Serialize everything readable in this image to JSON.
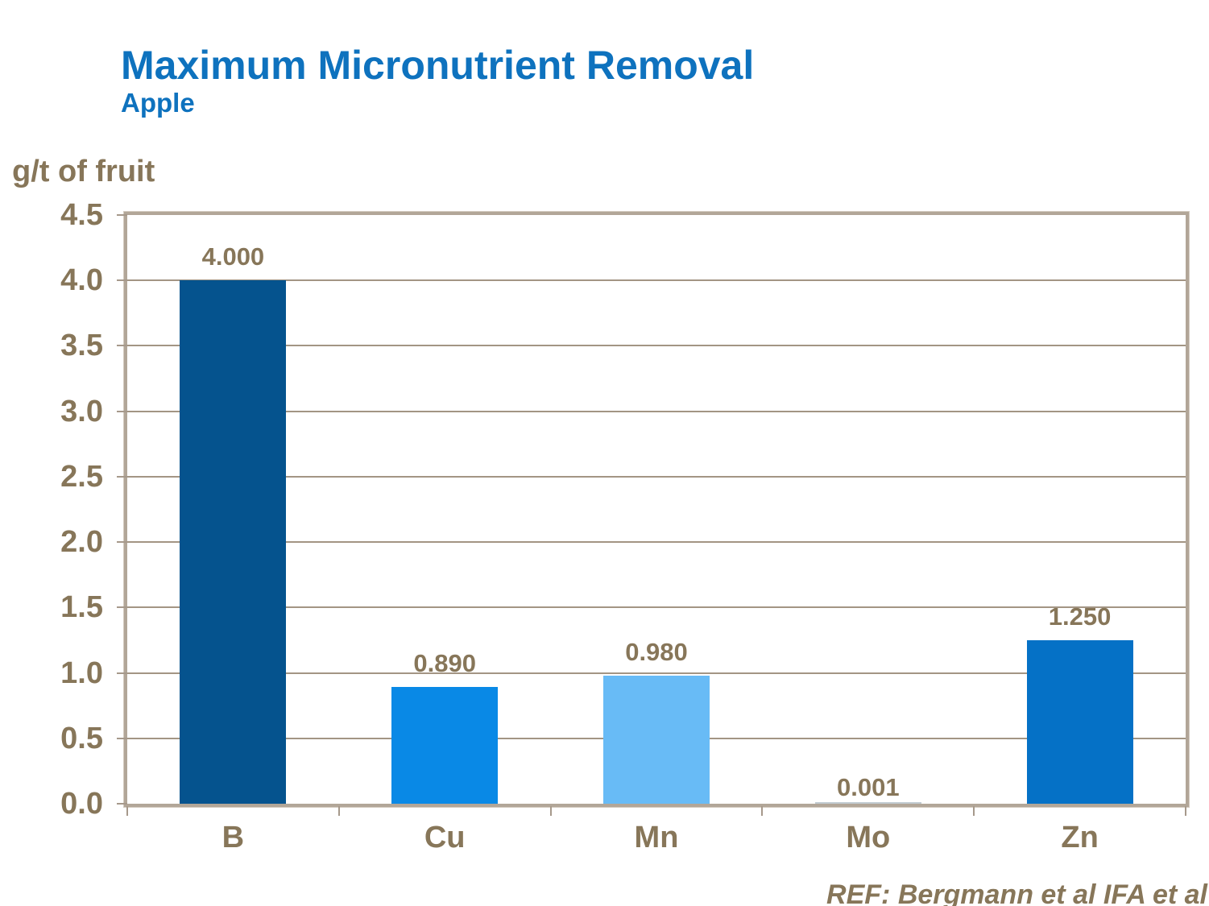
{
  "header": {
    "title": "Maximum Micronutrient Removal",
    "subtitle": "Apple"
  },
  "footer": {
    "reference": "REF: Bergmann et al IFA et al"
  },
  "chart_data": {
    "type": "bar",
    "title": "Maximum Micronutrient Removal",
    "subtitle": "Apple",
    "ylabel": "g/t of fruit",
    "xlabel": "",
    "categories": [
      "B",
      "Cu",
      "Mn",
      "Mo",
      "Zn"
    ],
    "values": [
      4.0,
      0.89,
      0.98,
      0.001,
      1.25
    ],
    "value_labels": [
      "4.000",
      "0.890",
      "0.980",
      "0.001",
      "1.250"
    ],
    "bar_colors": [
      "#05538E",
      "#0989E6",
      "#68BBF6",
      "#C2CCD2",
      "#0571C6"
    ],
    "ylim": [
      0,
      4.5
    ],
    "ytick_step": 0.5,
    "ytick_labels": [
      "0.0",
      "0.5",
      "1.0",
      "1.5",
      "2.0",
      "2.5",
      "3.0",
      "3.5",
      "4.0",
      "4.5"
    ],
    "grid": true,
    "legend": false
  },
  "colors": {
    "title_blue": "#0E72BE",
    "text_taupe": "#877659",
    "plot_border": "#B2A698",
    "gridline": "#A39584"
  }
}
